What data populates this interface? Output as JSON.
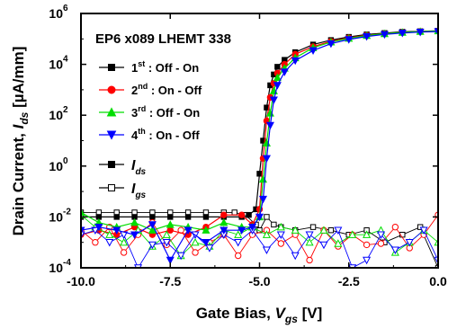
{
  "chart_data": {
    "type": "scatter",
    "title": "EP6 x089 LHEMT 338",
    "xlabel": "Gate Bias, V_gs [V]",
    "ylabel": "Drain Current, I_ds [µA/mm]",
    "xlabel_parts": {
      "main": "Gate Bias, ",
      "symbol": "V",
      "sub": "gs",
      "unit": " [V]"
    },
    "ylabel_parts": {
      "main": "Drain Current, ",
      "symbol": "I",
      "sub": "ds",
      "unit": " [µA/mm]"
    },
    "x_scale": "linear",
    "y_scale": "log",
    "xlim": [
      -10.0,
      0.0
    ],
    "ylim": [
      0.0001,
      1000000
    ],
    "x_ticks": [
      -10.0,
      -7.5,
      -5.0,
      -2.5,
      0.0
    ],
    "x_tick_labels": [
      "-10.0",
      "-7.5",
      "-5.0",
      "-2.5",
      "0.0"
    ],
    "y_ticks": [
      0.0001,
      0.01,
      1,
      100,
      10000,
      1000000
    ],
    "y_tick_labels": [
      {
        "base": "10",
        "exp": "-4"
      },
      {
        "base": "10",
        "exp": "-2"
      },
      {
        "base": "10",
        "exp": "0"
      },
      {
        "base": "10",
        "exp": "2"
      },
      {
        "base": "10",
        "exp": "4"
      },
      {
        "base": "10",
        "exp": "6"
      }
    ],
    "legend_position": "upper-left",
    "legend_series": [
      {
        "ord": "1",
        "sup": "st",
        "desc": " : Off - On",
        "color": "#000000",
        "marker": "square"
      },
      {
        "ord": "2",
        "sup": "nd",
        "desc": " : On - Off",
        "color": "#ff0000",
        "marker": "circle"
      },
      {
        "ord": "3",
        "sup": "rd",
        "desc": " : Off - On",
        "color": "#00dd00",
        "marker": "triangle-up"
      },
      {
        "ord": "4",
        "sup": "th",
        "desc": " : On - Off",
        "color": "#0000ff",
        "marker": "triangle-down"
      }
    ],
    "legend_types": [
      {
        "symbol": "I",
        "sub": "ds",
        "marker": "square-filled"
      },
      {
        "symbol": "I",
        "sub": "gs",
        "marker": "square-open"
      }
    ],
    "series": [
      {
        "name": "1st : Off - On",
        "color": "#000000",
        "marker": "square",
        "ids_x": [
          -10.0,
          -9.5,
          -9.0,
          -8.5,
          -8.0,
          -7.5,
          -7.0,
          -6.5,
          -6.0,
          -5.5,
          -5.3,
          -5.1,
          -5.0,
          -4.9,
          -4.8,
          -4.7,
          -4.6,
          -4.5,
          -4.3,
          -4.0,
          -3.5,
          -3.0,
          -2.5,
          -2.0,
          -1.5,
          -1.0,
          -0.5,
          0.0
        ],
        "ids_y": [
          0.01,
          0.01,
          0.01,
          0.01,
          0.01,
          0.01,
          0.01,
          0.01,
          0.01,
          0.01,
          0.012,
          0.02,
          0.5,
          10,
          200,
          1500,
          4000,
          8000,
          15000,
          30000,
          60000,
          90000,
          120000,
          150000,
          170000,
          190000,
          200000,
          210000
        ],
        "igs_x": [
          -10.0,
          -9.5,
          -9.0,
          -8.5,
          -8.0,
          -7.5,
          -7.0,
          -6.5,
          -6.0,
          -5.7,
          -5.4,
          -5.1,
          -5.0,
          -4.8,
          -4.6,
          -4.4,
          -4.0,
          -3.5,
          -3.0,
          -2.5,
          -2.0,
          -1.5,
          -1.0,
          -0.5,
          0.0
        ],
        "igs_y": [
          0.015,
          0.015,
          0.015,
          0.015,
          0.015,
          0.015,
          0.015,
          0.015,
          0.015,
          0.015,
          0.012,
          0.005,
          0.003,
          0.01,
          0.005,
          0.004,
          0.003,
          0.004,
          0.003,
          0.002,
          0.003,
          0.001,
          0.002,
          0.004,
          0.0001
        ]
      },
      {
        "name": "2nd : On - Off",
        "color": "#ff0000",
        "marker": "circle",
        "ids_x": [
          -10.0,
          -9.5,
          -9.0,
          -8.5,
          -8.0,
          -7.5,
          -7.0,
          -6.5,
          -6.0,
          -5.5,
          -5.2,
          -5.0,
          -4.9,
          -4.8,
          -4.7,
          -4.6,
          -4.5,
          -4.3,
          -4.0,
          -3.5,
          -3.0,
          -2.5,
          -2.0,
          -1.5,
          -1.0,
          -0.5,
          0.0
        ],
        "ids_y": [
          0.002,
          0.003,
          0.002,
          0.004,
          0.002,
          0.003,
          0.002,
          0.004,
          0.012,
          0.012,
          0.005,
          0.02,
          2,
          60,
          500,
          1800,
          4500,
          10000,
          25000,
          50000,
          80000,
          110000,
          140000,
          160000,
          180000,
          195000,
          205000
        ],
        "igs_x": [
          -10.0,
          -9.6,
          -9.2,
          -8.8,
          -8.4,
          -8.0,
          -7.6,
          -7.2,
          -6.8,
          -6.4,
          -6.0,
          -5.6,
          -5.2,
          -4.8,
          -4.4,
          -4.0,
          -3.6,
          -3.2,
          -2.8,
          -2.4,
          -2.0,
          -1.6,
          -1.2,
          -0.8,
          -0.4,
          0.0
        ],
        "igs_y": [
          0.003,
          0.001,
          0.004,
          0.0004,
          0.002,
          0.006,
          0.0008,
          0.003,
          0.0004,
          0.001,
          0.002,
          0.0003,
          0.002,
          0.003,
          0.0009,
          0.002,
          0.0002,
          0.003,
          0.0007,
          0.002,
          0.0008,
          0.0009,
          0.004,
          0.0006,
          0.002,
          0.012
        ]
      },
      {
        "name": "3rd : Off - On",
        "color": "#00dd00",
        "marker": "triangle-up",
        "ids_x": [
          -10.0,
          -9.5,
          -9.0,
          -8.5,
          -8.0,
          -7.5,
          -7.0,
          -6.5,
          -6.0,
          -5.5,
          -5.2,
          -5.0,
          -4.9,
          -4.8,
          -4.7,
          -4.6,
          -4.5,
          -4.3,
          -4.0,
          -3.5,
          -3.0,
          -2.5,
          -2.0,
          -1.5,
          -1.0,
          -0.5,
          0.0
        ],
        "ids_y": [
          0.015,
          0.006,
          0.004,
          0.006,
          0.003,
          0.005,
          0.004,
          0.003,
          0.006,
          0.004,
          0.004,
          0.01,
          0.3,
          8,
          120,
          900,
          3000,
          7000,
          18000,
          45000,
          75000,
          105000,
          135000,
          160000,
          180000,
          195000,
          205000
        ],
        "igs_x": [
          -10.0,
          -9.6,
          -9.2,
          -8.8,
          -8.4,
          -8.0,
          -7.6,
          -7.2,
          -6.8,
          -6.4,
          -6.0,
          -5.6,
          -5.2,
          -4.8,
          -4.4,
          -4.0,
          -3.6,
          -3.2,
          -2.8,
          -2.4,
          -2.0,
          -1.6,
          -1.2,
          -0.8,
          -0.4,
          0.0
        ],
        "igs_y": [
          0.012,
          0.004,
          0.002,
          0.001,
          0.003,
          0.0007,
          0.002,
          0.0003,
          0.001,
          0.0007,
          0.003,
          0.002,
          0.004,
          0.002,
          0.004,
          0.003,
          0.001,
          0.003,
          0.0009,
          0.002,
          0.002,
          0.003,
          0.0004,
          0.001,
          0.003,
          0.001
        ]
      },
      {
        "name": "4th : On - Off",
        "color": "#0000ff",
        "marker": "triangle-down",
        "ids_x": [
          -10.0,
          -9.5,
          -9.0,
          -8.5,
          -8.0,
          -7.5,
          -7.0,
          -6.5,
          -6.0,
          -5.5,
          -5.2,
          -5.0,
          -4.9,
          -4.8,
          -4.7,
          -4.6,
          -4.5,
          -4.3,
          -4.0,
          -3.5,
          -3.0,
          -2.5,
          -2.0,
          -1.5,
          -1.0,
          -0.5,
          0.0
        ],
        "ids_y": [
          0.003,
          0.004,
          0.003,
          0.002,
          0.005,
          0.0002,
          0.003,
          0.001,
          0.003,
          0.003,
          0.004,
          0.01,
          0.05,
          2,
          40,
          400,
          1500,
          5000,
          14000,
          35000,
          65000,
          95000,
          125000,
          150000,
          170000,
          185000,
          195000
        ],
        "igs_x": [
          -10.0,
          -9.6,
          -9.2,
          -8.8,
          -8.4,
          -8.0,
          -7.6,
          -7.2,
          -6.8,
          -6.4,
          -6.0,
          -5.6,
          -5.2,
          -4.8,
          -4.4,
          -4.0,
          -3.6,
          -3.2,
          -2.8,
          -2.4,
          -2.0,
          -1.6,
          -1.2,
          -0.8,
          -0.4,
          0.0
        ],
        "igs_y": [
          0.002,
          0.003,
          0.001,
          0.002,
          0.0001,
          0.0008,
          0.001,
          0.0003,
          0.002,
          0.0006,
          0.002,
          0.001,
          0.003,
          0.0005,
          0.002,
          0.0003,
          0.002,
          0.0008,
          0.003,
          0.0001,
          0.0002,
          0.002,
          0.0005,
          0.001,
          0.003,
          0.0002
        ]
      }
    ]
  }
}
